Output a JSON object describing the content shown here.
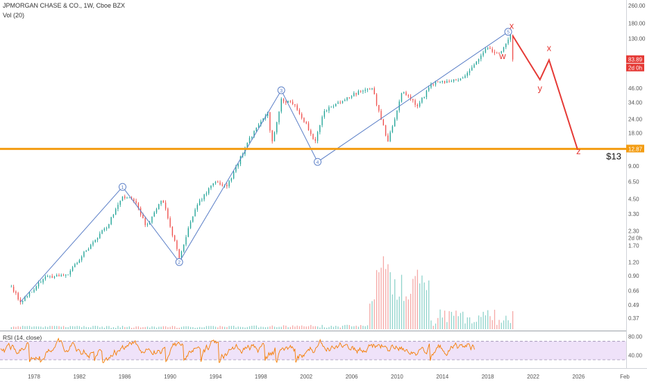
{
  "header": {
    "symbol_line": "JPMORGAN CHASE & CO., 1W, Cboe BZX",
    "volume_label": "Vol (20)",
    "rsi_label": "RSI (14, close)"
  },
  "colors": {
    "background": "#ffffff",
    "candle_up": "#26a69a",
    "candle_down": "#ef5350",
    "wave_line": "#5b7fc7",
    "projection": "#e53935",
    "support_line": "#f39c12",
    "rsi_line": "#f57c00",
    "rsi_band": "#ead8f7",
    "price_badge": "#e53935",
    "support_badge": "#f39c12"
  },
  "chart_data": {
    "type": "line",
    "title": "JPMORGAN CHASE & CO., 1W, Cboe BZX",
    "x_tick_labels": [
      "1978",
      "1982",
      "1986",
      "1990",
      "1994",
      "1998",
      "2002",
      "2006",
      "2010",
      "2014",
      "2018",
      "2022",
      "2026",
      "Feb"
    ],
    "y_tick_labels": [
      "260.00",
      "180.00",
      "130.00",
      "83.89",
      "2d 0h",
      "46.00",
      "34.00",
      "24.00",
      "18.00",
      "12.87",
      "9.00",
      "6.50",
      "4.50",
      "3.30",
      "2.30",
      "1.70",
      "1.20",
      "0.90",
      "0.66",
      "0.49",
      "0.37"
    ],
    "y_scale": "log",
    "y_range": [
      0.33,
      260
    ],
    "x_range": [
      1975.0,
      2030.2
    ],
    "current_price": "83.89",
    "countdown": "2d 0h",
    "support_level": 12.87,
    "support_text": "$13",
    "price_series_key_points": [
      {
        "x": 1976.0,
        "y": 0.72
      },
      {
        "x": 1976.8,
        "y": 0.52
      },
      {
        "x": 1979.0,
        "y": 0.88
      },
      {
        "x": 1981.0,
        "y": 0.92
      },
      {
        "x": 1982.5,
        "y": 1.5
      },
      {
        "x": 1984.5,
        "y": 2.6
      },
      {
        "x": 1985.8,
        "y": 4.8
      },
      {
        "x": 1987.0,
        "y": 4.2
      },
      {
        "x": 1987.9,
        "y": 2.5
      },
      {
        "x": 1989.3,
        "y": 4.6
      },
      {
        "x": 1990.8,
        "y": 1.3
      },
      {
        "x": 1992.3,
        "y": 4.0
      },
      {
        "x": 1994.0,
        "y": 6.5
      },
      {
        "x": 1995.0,
        "y": 5.8
      },
      {
        "x": 1997.0,
        "y": 16.0
      },
      {
        "x": 1998.7,
        "y": 28.0
      },
      {
        "x": 1998.9,
        "y": 13.5
      },
      {
        "x": 1999.8,
        "y": 36.0
      },
      {
        "x": 2001.0,
        "y": 33.0
      },
      {
        "x": 2002.8,
        "y": 15.0
      },
      {
        "x": 2003.5,
        "y": 28.0
      },
      {
        "x": 2006.5,
        "y": 42.0
      },
      {
        "x": 2007.8,
        "y": 46.0
      },
      {
        "x": 2009.2,
        "y": 15.0
      },
      {
        "x": 2010.5,
        "y": 44.0
      },
      {
        "x": 2011.8,
        "y": 31.0
      },
      {
        "x": 2013.0,
        "y": 50.0
      },
      {
        "x": 2016.0,
        "y": 58.0
      },
      {
        "x": 2018.0,
        "y": 110.0
      },
      {
        "x": 2018.9,
        "y": 92.0
      },
      {
        "x": 2020.0,
        "y": 138.0
      },
      {
        "x": 2020.2,
        "y": 83.89
      }
    ],
    "wave_labels": [
      {
        "label": "1",
        "x": 1985.8,
        "y": 5.8
      },
      {
        "label": "2",
        "x": 1990.8,
        "y": 1.2
      },
      {
        "label": "3",
        "x": 1999.8,
        "y": 44.0
      },
      {
        "label": "4",
        "x": 2003.0,
        "y": 9.8
      },
      {
        "label": "5",
        "x": 2019.8,
        "y": 150.0
      }
    ],
    "wave_path": [
      {
        "x": 1976.8,
        "y": 0.52
      },
      {
        "x": 1985.8,
        "y": 5.8
      },
      {
        "x": 1990.8,
        "y": 1.2
      },
      {
        "x": 1999.8,
        "y": 44.0
      },
      {
        "x": 2003.0,
        "y": 9.8
      },
      {
        "x": 2019.8,
        "y": 150.0
      }
    ],
    "projection_labels": [
      {
        "label": "x",
        "x": 2020.1,
        "y": 160.0
      },
      {
        "label": "w",
        "x": 2019.3,
        "y": 85.0
      },
      {
        "label": "x",
        "x": 2023.4,
        "y": 100.0
      },
      {
        "label": "y",
        "x": 2022.6,
        "y": 43.0
      },
      {
        "label": "z",
        "x": 2026.0,
        "y": 11.5
      }
    ],
    "projection_path": [
      {
        "x": 2020.2,
        "y": 138.0
      },
      {
        "x": 2022.6,
        "y": 55.0
      },
      {
        "x": 2023.4,
        "y": 83.0
      },
      {
        "x": 2025.9,
        "y": 12.87
      }
    ],
    "rsi": {
      "label": "RSI (14, close)",
      "upper_band": 70,
      "lower_band": 30,
      "tick_labels": [
        "80.00",
        "40.00"
      ],
      "last_value": 60
    },
    "volume_label": "Vol (20)",
    "grid": false
  }
}
